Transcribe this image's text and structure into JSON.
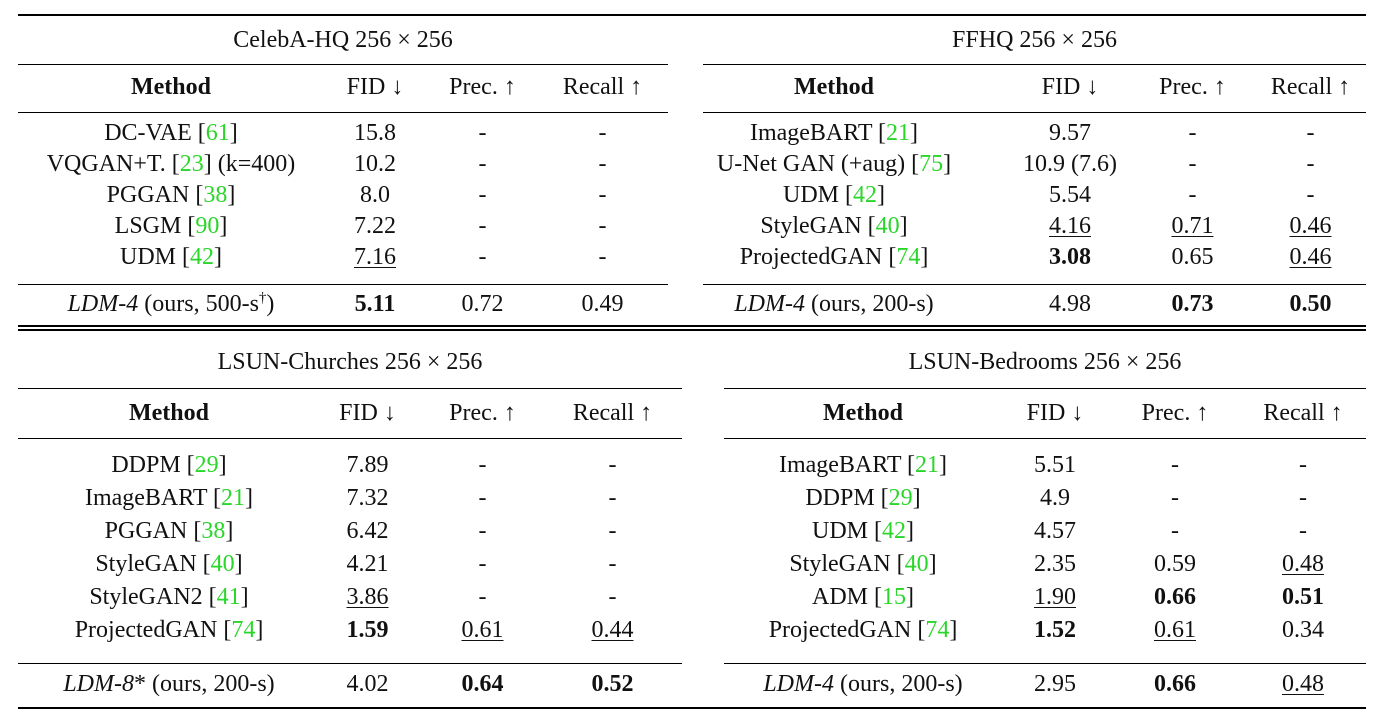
{
  "colors": {
    "citation": "#2bd62b",
    "rule": "#000000",
    "text": "#111111"
  },
  "arrows": {
    "down": "↓",
    "up": "↑"
  },
  "columns": [
    "Method",
    "FID",
    "Prec.",
    "Recall"
  ],
  "tables": [
    {
      "id": "celeba",
      "caption": "CelebA-HQ 256 × 256",
      "rows": [
        {
          "name": "DC-VAE",
          "ref": "61",
          "suffix": "",
          "fid": "15.8",
          "prec": "-",
          "recall": "-",
          "style": [
            "",
            "",
            ""
          ]
        },
        {
          "name": "VQGAN+T.",
          "ref": "23",
          "suffix": " (k=400)",
          "fid": "10.2",
          "prec": "-",
          "recall": "-",
          "style": [
            "",
            "",
            ""
          ]
        },
        {
          "name": "PGGAN",
          "ref": "38",
          "suffix": "",
          "fid": "8.0",
          "prec": "-",
          "recall": "-",
          "style": [
            "",
            "",
            ""
          ]
        },
        {
          "name": "LSGM",
          "ref": "90",
          "suffix": "",
          "fid": "7.22",
          "prec": "-",
          "recall": "-",
          "style": [
            "",
            "",
            ""
          ]
        },
        {
          "name": "UDM",
          "ref": "42",
          "suffix": "",
          "fid": "7.16",
          "prec": "-",
          "recall": "-",
          "style": [
            "ul",
            "",
            ""
          ]
        }
      ],
      "ours": {
        "model": "LDM-4",
        "detail": " (ours, 500-s",
        "sup": "†",
        "close": ")",
        "fid": "5.11",
        "prec": "0.72",
        "recall": "0.49",
        "style": [
          "bold",
          "",
          ""
        ]
      }
    },
    {
      "id": "ffhq",
      "caption": "FFHQ 256 × 256",
      "rows": [
        {
          "name": "ImageBART",
          "ref": "21",
          "suffix": "",
          "fid": "9.57",
          "prec": "-",
          "recall": "-",
          "style": [
            "",
            "",
            ""
          ]
        },
        {
          "name": "U-Net GAN (+aug)",
          "ref": "75",
          "suffix": "",
          "fid": "10.9 (7.6)",
          "prec": "-",
          "recall": "-",
          "style": [
            "",
            "",
            ""
          ]
        },
        {
          "name": "UDM",
          "ref": "42",
          "suffix": "",
          "fid": "5.54",
          "prec": "-",
          "recall": "-",
          "style": [
            "",
            "",
            ""
          ]
        },
        {
          "name": "StyleGAN",
          "ref": "40",
          "suffix": "",
          "fid": "4.16",
          "prec": "0.71",
          "recall": "0.46",
          "style": [
            "ul",
            "ul",
            "ul"
          ]
        },
        {
          "name": "ProjectedGAN",
          "ref": "74",
          "suffix": "",
          "fid": "3.08",
          "prec": "0.65",
          "recall": "0.46",
          "style": [
            "bold",
            "",
            "ul"
          ]
        }
      ],
      "ours": {
        "model": "LDM-4",
        "detail": " (ours, 200-s)",
        "sup": "",
        "close": "",
        "fid": "4.98",
        "prec": "0.73",
        "recall": "0.50",
        "style": [
          "",
          "bold",
          "bold"
        ]
      }
    },
    {
      "id": "churches",
      "caption": "LSUN-Churches 256 × 256",
      "rows": [
        {
          "name": "DDPM",
          "ref": "29",
          "suffix": "",
          "fid": "7.89",
          "prec": "-",
          "recall": "-",
          "style": [
            "",
            "",
            ""
          ]
        },
        {
          "name": "ImageBART",
          "ref": "21",
          "suffix": "",
          "fid": "7.32",
          "prec": "-",
          "recall": "-",
          "style": [
            "",
            "",
            ""
          ]
        },
        {
          "name": "PGGAN",
          "ref": "38",
          "suffix": "",
          "fid": "6.42",
          "prec": "-",
          "recall": "-",
          "style": [
            "",
            "",
            ""
          ]
        },
        {
          "name": "StyleGAN",
          "ref": "40",
          "suffix": "",
          "fid": "4.21",
          "prec": "-",
          "recall": "-",
          "style": [
            "",
            "",
            ""
          ]
        },
        {
          "name": "StyleGAN2",
          "ref": "41",
          "suffix": "",
          "fid": "3.86",
          "prec": "-",
          "recall": "-",
          "style": [
            "ul",
            "",
            ""
          ]
        },
        {
          "name": "ProjectedGAN",
          "ref": "74",
          "suffix": "",
          "fid": "1.59",
          "prec": "0.61",
          "recall": "0.44",
          "style": [
            "bold",
            "ul",
            "ul"
          ]
        }
      ],
      "ours": {
        "model": "LDM-8",
        "detail": "* (ours, 200-s)",
        "sup": "",
        "close": "",
        "fid": "4.02",
        "prec": "0.64",
        "recall": "0.52",
        "style": [
          "",
          "bold",
          "bold"
        ]
      }
    },
    {
      "id": "bedrooms",
      "caption": "LSUN-Bedrooms 256 × 256",
      "rows": [
        {
          "name": "ImageBART",
          "ref": "21",
          "suffix": "",
          "fid": "5.51",
          "prec": "-",
          "recall": "-",
          "style": [
            "",
            "",
            ""
          ]
        },
        {
          "name": "DDPM",
          "ref": "29",
          "suffix": "",
          "fid": "4.9",
          "prec": "-",
          "recall": "-",
          "style": [
            "",
            "",
            ""
          ]
        },
        {
          "name": "UDM",
          "ref": "42",
          "suffix": "",
          "fid": "4.57",
          "prec": "-",
          "recall": "-",
          "style": [
            "",
            "",
            ""
          ]
        },
        {
          "name": "StyleGAN",
          "ref": "40",
          "suffix": "",
          "fid": "2.35",
          "prec": "0.59",
          "recall": "0.48",
          "style": [
            "",
            "",
            "ul"
          ]
        },
        {
          "name": "ADM",
          "ref": "15",
          "suffix": "",
          "fid": "1.90",
          "prec": "0.66",
          "recall": "0.51",
          "style": [
            "ul",
            "bold",
            "bold"
          ]
        },
        {
          "name": "ProjectedGAN",
          "ref": "74",
          "suffix": "",
          "fid": "1.52",
          "prec": "0.61",
          "recall": "0.34",
          "style": [
            "bold",
            "ul",
            ""
          ]
        }
      ],
      "ours": {
        "model": "LDM-4",
        "detail": " (ours, 200-s)",
        "sup": "",
        "close": "",
        "fid": "2.95",
        "prec": "0.66",
        "recall": "0.48",
        "style": [
          "",
          "bold",
          "ul"
        ]
      }
    }
  ]
}
